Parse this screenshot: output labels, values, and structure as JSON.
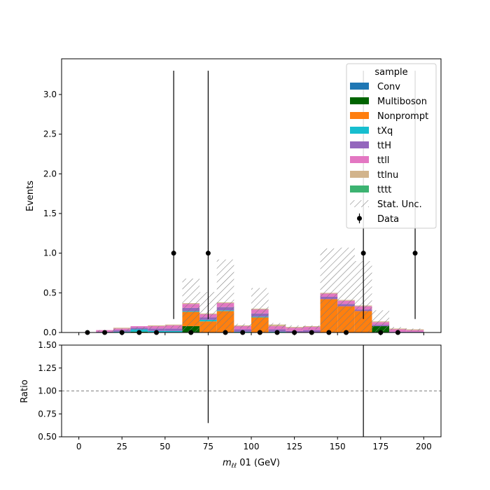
{
  "chart_data": {
    "type": "bar",
    "stacked": true,
    "x_bin_edges": [
      0,
      10,
      20,
      30,
      40,
      50,
      60,
      70,
      80,
      90,
      100,
      110,
      120,
      130,
      140,
      150,
      160,
      170,
      180,
      190,
      200
    ],
    "xlim": [
      -10,
      210
    ],
    "ylim": [
      0,
      3.45
    ],
    "xticks": [
      0,
      25,
      50,
      75,
      100,
      125,
      150,
      175,
      200
    ],
    "yticks": [
      0.0,
      0.5,
      1.0,
      1.5,
      2.0,
      2.5,
      3.0
    ],
    "ylabel": "Events",
    "xlabel_main": "m",
    "xlabel_sub": "ℓℓ",
    "xlabel_rest": " 01 (GeV)",
    "grid": false,
    "legend": {
      "title": "sample",
      "placement": "top-right",
      "stat_label": "Stat. Unc.",
      "data_label": "Data"
    },
    "series": [
      {
        "name": "Conv",
        "color": "#1f77b4",
        "values": [
          0,
          0,
          0,
          0,
          0,
          0,
          0,
          0,
          0,
          0,
          0,
          0,
          0,
          0,
          0,
          0,
          0,
          0,
          0,
          0
        ]
      },
      {
        "name": "Multiboson",
        "color": "#006400",
        "values": [
          0,
          0,
          0,
          0.01,
          0,
          0,
          0.08,
          0,
          0,
          0,
          0,
          0,
          0,
          0,
          0,
          0,
          0,
          0.08,
          0,
          0
        ]
      },
      {
        "name": "Nonprompt",
        "color": "#ff7f0e",
        "values": [
          0,
          0,
          0,
          0,
          0,
          0,
          0.18,
          0.14,
          0.27,
          0,
          0.19,
          0,
          0,
          0,
          0.42,
          0.33,
          0.27,
          0,
          0,
          0
        ]
      },
      {
        "name": "tXq",
        "color": "#17becf",
        "values": [
          0,
          0,
          0.01,
          0.03,
          0.02,
          0.02,
          0.01,
          0.02,
          0.01,
          0.01,
          0.01,
          0.01,
          0,
          0,
          0,
          0,
          0,
          0,
          0,
          0
        ]
      },
      {
        "name": "ttH",
        "color": "#9467bd",
        "values": [
          0,
          0.01,
          0.02,
          0.02,
          0.03,
          0.03,
          0.04,
          0.03,
          0.04,
          0.03,
          0.04,
          0.03,
          0.02,
          0.03,
          0.03,
          0.03,
          0.02,
          0.02,
          0.01,
          0.01
        ]
      },
      {
        "name": "ttll",
        "color": "#e377c2",
        "values": [
          0,
          0.02,
          0.02,
          0.02,
          0.03,
          0.04,
          0.05,
          0.04,
          0.05,
          0.04,
          0.05,
          0.04,
          0.04,
          0.04,
          0.04,
          0.04,
          0.04,
          0.03,
          0.03,
          0.02
        ]
      },
      {
        "name": "ttlnu",
        "color": "#d2b48c",
        "values": [
          0,
          0,
          0.01,
          0,
          0.01,
          0.01,
          0.01,
          0.01,
          0.01,
          0.01,
          0.01,
          0.02,
          0.01,
          0.01,
          0.01,
          0.01,
          0.01,
          0.01,
          0.01,
          0.01
        ]
      },
      {
        "name": "tttt",
        "color": "#3cb371",
        "values": [
          0,
          0,
          0,
          0,
          0,
          0,
          0,
          0,
          0,
          0,
          0,
          0,
          0,
          0,
          0,
          0,
          0,
          0,
          0,
          0
        ]
      }
    ],
    "stat_unc_up": [
      0,
      0.03,
      0.05,
      0.07,
      0.08,
      0.09,
      0.68,
      0.51,
      0.92,
      0.11,
      0.56,
      0.12,
      0.09,
      0.09,
      1.06,
      1.07,
      0.9,
      0.28,
      0.07,
      0.05
    ],
    "stat_unc_down": [
      0,
      0.01,
      0.01,
      0.03,
      0.04,
      0.05,
      0,
      0,
      0,
      0.05,
      0,
      0.05,
      0.04,
      0.04,
      0,
      0,
      0,
      0,
      0.03,
      0.02
    ],
    "data": {
      "x": [
        5,
        15,
        25,
        35,
        45,
        55,
        65,
        75,
        85,
        95,
        105,
        115,
        125,
        135,
        145,
        155,
        165,
        175,
        185,
        195
      ],
      "y": [
        0,
        0,
        0,
        0,
        0,
        1,
        0,
        1,
        0,
        0,
        0,
        0,
        0,
        0,
        0,
        0,
        1,
        0,
        0,
        1
      ],
      "yerr_low": [
        0,
        0,
        0,
        0,
        0,
        0.83,
        0,
        0.83,
        0,
        0,
        0,
        0,
        0,
        0,
        0,
        0,
        0.83,
        0,
        0,
        0.83
      ],
      "yerr_high": [
        0,
        0,
        0,
        0,
        0,
        2.3,
        0,
        2.3,
        0,
        0,
        0,
        0,
        0,
        0,
        0,
        0,
        2.3,
        0,
        0,
        2.3
      ]
    },
    "ratio": {
      "ylabel": "Ratio",
      "ylim": [
        0.5,
        1.5
      ],
      "yticks": [
        0.5,
        0.75,
        1.0,
        1.25,
        1.5
      ],
      "reference_line": 1.0,
      "error_bars": [
        {
          "x": 75,
          "low": 0.65,
          "high": 1.5
        },
        {
          "x": 165,
          "low": 0.5,
          "high": 1.5
        }
      ]
    }
  }
}
